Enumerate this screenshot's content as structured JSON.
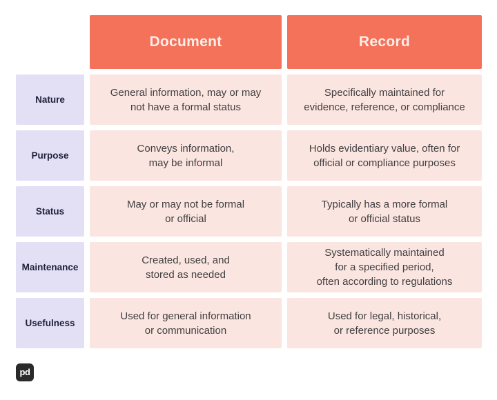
{
  "colors": {
    "page_bg": "#FFFFFF",
    "header_bg": "#F4715A",
    "header_text": "#FBEEE8",
    "label_bg": "#E3E0F6",
    "label_text": "#20223A",
    "cell_bg": "#FBE5E0",
    "cell_text": "#403E41",
    "logo_bg": "#2A2A2A",
    "logo_text": "#FFFFFF"
  },
  "table": {
    "header": {
      "document": "Document",
      "record": "Record"
    },
    "rows": [
      {
        "label": "Nature",
        "document": "General information, may or may\nnot have a formal status",
        "record": "Specifically maintained for\nevidence, reference, or compliance"
      },
      {
        "label": "Purpose",
        "document": "Conveys information,\nmay be informal",
        "record": "Holds evidentiary value, often for\nofficial or compliance purposes"
      },
      {
        "label": "Status",
        "document": "May or may not be formal\nor official",
        "record": "Typically has a more formal\nor official status"
      },
      {
        "label": "Maintenance",
        "document": "Created, used, and\nstored as needed",
        "record": "Systematically maintained\nfor a specified period,\noften according to regulations"
      },
      {
        "label": "Usefulness",
        "document": "Used for general information\nor communication",
        "record": "Used for legal, historical,\nor reference purposes"
      }
    ]
  },
  "logo": {
    "text": "pd"
  }
}
